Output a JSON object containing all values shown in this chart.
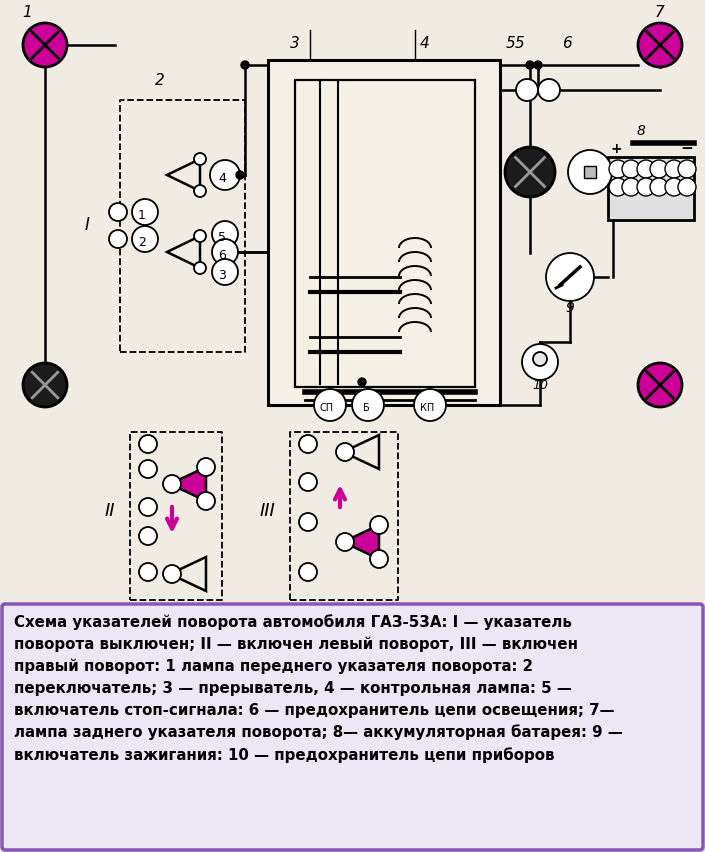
{
  "bg_color": "#f0ece4",
  "caption_bg": "#ede6f5",
  "caption_border": "#8855bb",
  "magenta": "#cc0099",
  "black": "#111111",
  "white": "#ffffff",
  "relay_bg": "#f5f0e5",
  "caption_lines": [
    "Схема указателей поворота автомобиля ГАЗ-53А: I — указатель",
    "поворота выключен; II — включен левый поворот, III — включен",
    "правый поворот: 1 лампа переднего указателя поворота: 2",
    "переключатель; 3 — прерыватель, 4 — контрольная лампа: 5 —",
    "включатель стоп-сигнала: 6 — предохранитель цепи освещения; 7—",
    "лампа заднего указателя поворота; 8— аккумуляторная батарея: 9 —",
    "включатель зажигания: 10 — предохранитель цепи приборов"
  ]
}
